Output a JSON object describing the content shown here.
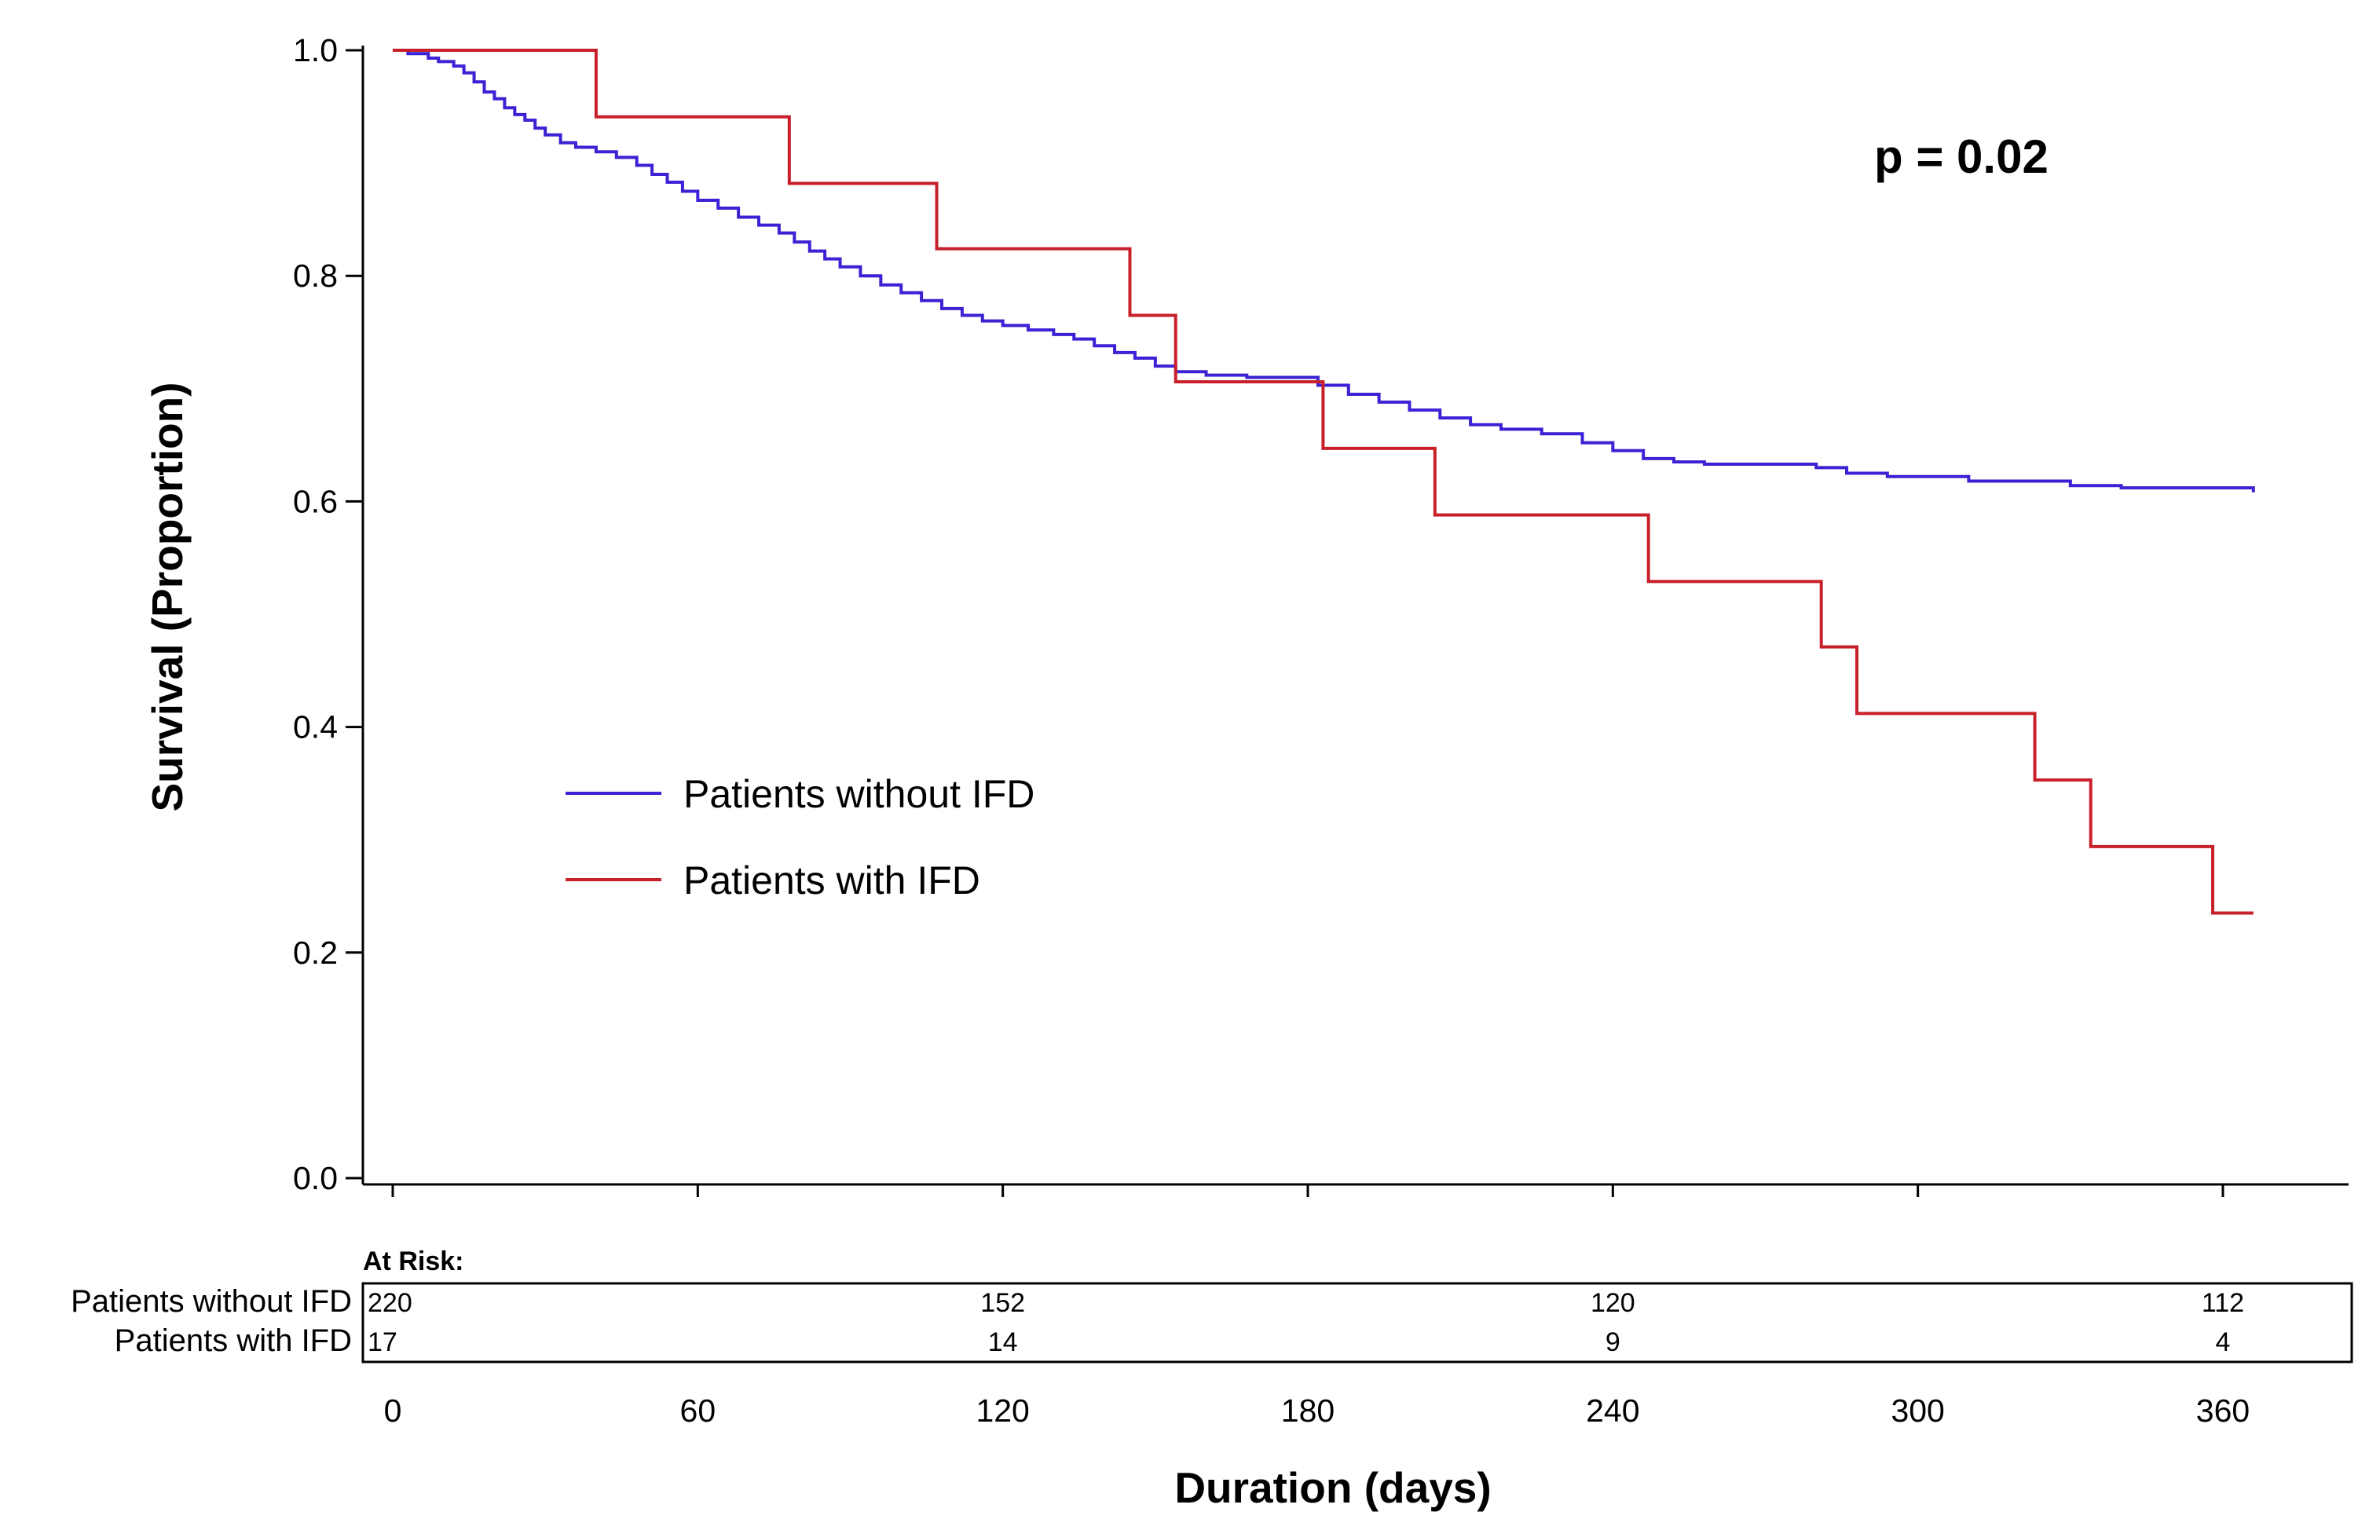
{
  "chart_data": {
    "type": "line",
    "step": true,
    "xlabel": "Duration (days)",
    "ylabel": "Survival (Proportion)",
    "xlim": [
      0,
      360
    ],
    "ylim": [
      0,
      1.0
    ],
    "xticks": [
      0,
      60,
      120,
      180,
      240,
      300,
      360
    ],
    "xtick_labels": [
      "0",
      "60",
      "120",
      "180",
      "240",
      "300",
      "360"
    ],
    "yticks": [
      0.0,
      0.2,
      0.4,
      0.6,
      0.8,
      1.0
    ],
    "ytick_labels": [
      "0.0",
      "0.2",
      "0.4",
      "0.6",
      "0.8",
      "1.0"
    ],
    "grid": false,
    "legend_position": "center-left",
    "annotation": "p = 0.02",
    "series": [
      {
        "name": "Patients without IFD",
        "color": "#3b22d4",
        "x": [
          0,
          3,
          7,
          9,
          12,
          14,
          16,
          18,
          20,
          22,
          24,
          26,
          28,
          30,
          33,
          36,
          40,
          44,
          48,
          51,
          54,
          57,
          60,
          64,
          68,
          72,
          76,
          79,
          82,
          85,
          88,
          92,
          96,
          100,
          104,
          108,
          112,
          116,
          120,
          125,
          130,
          134,
          138,
          142,
          146,
          150,
          154,
          160,
          168,
          176,
          182,
          188,
          194,
          200,
          206,
          212,
          218,
          226,
          234,
          240,
          246,
          252,
          258,
          266,
          280,
          286,
          294,
          300,
          310,
          330,
          340,
          350,
          366
        ],
        "y": [
          1.0,
          0.997,
          0.993,
          0.99,
          0.986,
          0.98,
          0.972,
          0.963,
          0.957,
          0.949,
          0.943,
          0.938,
          0.931,
          0.925,
          0.918,
          0.914,
          0.91,
          0.905,
          0.898,
          0.89,
          0.883,
          0.875,
          0.867,
          0.86,
          0.852,
          0.845,
          0.838,
          0.83,
          0.822,
          0.815,
          0.808,
          0.8,
          0.792,
          0.785,
          0.778,
          0.771,
          0.765,
          0.76,
          0.756,
          0.752,
          0.748,
          0.744,
          0.738,
          0.732,
          0.727,
          0.72,
          0.715,
          0.712,
          0.71,
          0.71,
          0.703,
          0.695,
          0.688,
          0.681,
          0.674,
          0.668,
          0.664,
          0.66,
          0.652,
          0.645,
          0.638,
          0.635,
          0.633,
          0.633,
          0.63,
          0.625,
          0.622,
          0.622,
          0.618,
          0.614,
          0.612,
          0.612,
          0.608
        ]
      },
      {
        "name": "Patients with IFD",
        "color": "#c8202a",
        "x": [
          0,
          40,
          78,
          107,
          145,
          154,
          164,
          183,
          205,
          247,
          281,
          288,
          323,
          334,
          358,
          366
        ],
        "y": [
          1.0,
          0.941,
          0.882,
          0.824,
          0.765,
          0.706,
          0.706,
          0.647,
          0.588,
          0.529,
          0.471,
          0.412,
          0.353,
          0.294,
          0.235,
          0.235
        ]
      }
    ],
    "at_risk": {
      "title": "At Risk:",
      "times": [
        0,
        120,
        240,
        360
      ],
      "rows": [
        {
          "name": "Patients without IFD",
          "counts": [
            "220",
            "152",
            "120",
            "112"
          ]
        },
        {
          "name": "Patients with IFD",
          "counts": [
            "17",
            "14",
            "9",
            "4"
          ]
        }
      ]
    }
  }
}
